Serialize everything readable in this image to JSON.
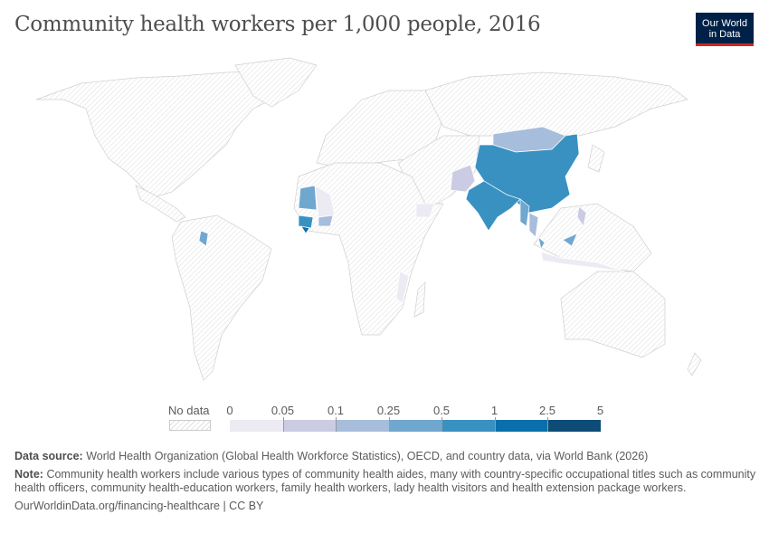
{
  "title": "Community health workers per 1,000 people, 2016",
  "logo": {
    "line1": "Our World",
    "line2": "in Data"
  },
  "legend": {
    "no_data_label": "No data",
    "bins": [
      {
        "from": "0",
        "to": "0.05",
        "color": "#ecebf4"
      },
      {
        "from": "0.05",
        "to": "0.1",
        "color": "#cbcbe3"
      },
      {
        "from": "0.1",
        "to": "0.25",
        "color": "#a7bddc"
      },
      {
        "from": "0.25",
        "to": "0.5",
        "color": "#70a7cf"
      },
      {
        "from": "0.5",
        "to": "1",
        "color": "#3991c2"
      },
      {
        "from": "1",
        "to": "2.5",
        "color": "#0b6fab"
      },
      {
        "from": "2.5",
        "to": "5",
        "color": "#0d4c76"
      }
    ],
    "tick_labels": [
      "0",
      "0.05",
      "0.1",
      "0.25",
      "0.5",
      "1",
      "2.5",
      "5"
    ]
  },
  "map_data": {
    "China": "0.5-1",
    "India": "0.5-1",
    "Pakistan": "0.05-0.1",
    "Mongolia": "0.1-0.25",
    "Myanmar": "0.25-0.5",
    "Thailand": "0.1-0.25",
    "Malaysia": "0.25-0.5",
    "Indonesia": "0-0.05",
    "Philippines": "0.05-0.1",
    "Mauritania": "0.25-0.5",
    "Mali": "0-0.05",
    "Guinea": "0.5-1",
    "Sierra Leone": "1-2.5",
    "Burkina Faso": "0.1-0.25",
    "Guyana": "0.25-0.5",
    "Ethiopia": "0-0.05",
    "Mozambique": "0-0.05"
  },
  "footer": {
    "source_label": "Data source:",
    "source_text": "World Health Organization (Global Health Workforce Statistics), OECD, and country data, via World Bank (2026)",
    "note_label": "Note:",
    "note_text": "Community health workers include various types of community health aides, many with country-specific occupational titles such as community health officers, community health-education workers, family health workers, lady health visitors and health extension package workers.",
    "url": "OurWorldinData.org/financing-healthcare | CC BY"
  }
}
